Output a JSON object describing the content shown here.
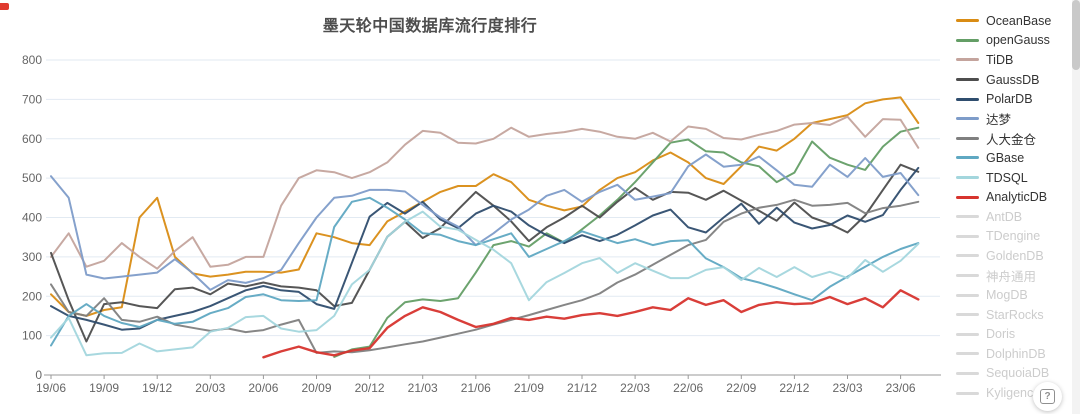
{
  "chart": {
    "title": "墨天轮中国数据库流行度排行",
    "title_color": "#4d4d4d"
  },
  "help_button": {
    "label": "?"
  },
  "legend": {
    "items": [
      {
        "label": "OceanBase",
        "color": "#d98c14",
        "enabled": true
      },
      {
        "label": "openGauss",
        "color": "#649e66",
        "enabled": true
      },
      {
        "label": "TiDB",
        "color": "#c4a49d",
        "enabled": true
      },
      {
        "label": "GaussDB",
        "color": "#4d4d4d",
        "enabled": true
      },
      {
        "label": "PolarDB",
        "color": "#2f4d6e",
        "enabled": true
      },
      {
        "label": "达梦",
        "color": "#7e9cc9",
        "enabled": true
      },
      {
        "label": "人大金仓",
        "color": "#7f7f7f",
        "enabled": true
      },
      {
        "label": "GBase",
        "color": "#5fa8c2",
        "enabled": true
      },
      {
        "label": "TDSQL",
        "color": "#a3d6dd",
        "enabled": true
      },
      {
        "label": "AnalyticDB",
        "color": "#d7342e",
        "enabled": true
      },
      {
        "label": "AntDB",
        "color": "#d9d9d9",
        "enabled": false
      },
      {
        "label": "TDengine",
        "color": "#d9d9d9",
        "enabled": false
      },
      {
        "label": "GoldenDB",
        "color": "#d9d9d9",
        "enabled": false
      },
      {
        "label": "神舟通用",
        "color": "#d9d9d9",
        "enabled": false
      },
      {
        "label": "MogDB",
        "color": "#d9d9d9",
        "enabled": false
      },
      {
        "label": "StarRocks",
        "color": "#d9d9d9",
        "enabled": false
      },
      {
        "label": "Doris",
        "color": "#d9d9d9",
        "enabled": false
      },
      {
        "label": "DolphinDB",
        "color": "#d9d9d9",
        "enabled": false
      },
      {
        "label": "SequoiaDB",
        "color": "#d9d9d9",
        "enabled": false
      },
      {
        "label": "Kyligence",
        "color": "#d9d9d9",
        "enabled": false
      }
    ]
  },
  "chart_data": {
    "type": "line",
    "title": "墨天轮中国数据库流行度排行",
    "xlabel": "",
    "ylabel": "",
    "ylim": [
      0,
      800
    ],
    "y_ticks": [
      0,
      100,
      200,
      300,
      400,
      500,
      600,
      700,
      800
    ],
    "grid": true,
    "legend_position": "right",
    "x_tick_labels": [
      "19/06",
      "19/09",
      "19/12",
      "20/03",
      "20/06",
      "20/09",
      "20/12",
      "21/03",
      "21/06",
      "21/09",
      "21/12",
      "22/03",
      "22/06",
      "22/09",
      "22/12",
      "23/03",
      "23/06"
    ],
    "x": [
      "19/06",
      "19/07",
      "19/08",
      "19/09",
      "19/10",
      "19/11",
      "19/12",
      "20/01",
      "20/02",
      "20/03",
      "20/04",
      "20/05",
      "20/06",
      "20/07",
      "20/08",
      "20/09",
      "20/10",
      "20/11",
      "20/12",
      "21/01",
      "21/02",
      "21/03",
      "21/04",
      "21/05",
      "21/06",
      "21/07",
      "21/08",
      "21/09",
      "21/10",
      "21/11",
      "21/12",
      "22/01",
      "22/02",
      "22/03",
      "22/04",
      "22/05",
      "22/06",
      "22/07",
      "22/08",
      "22/09",
      "22/10",
      "22/11",
      "22/12",
      "23/01",
      "23/02",
      "23/03",
      "23/04",
      "23/05",
      "23/06",
      "23/07"
    ],
    "series": [
      {
        "name": "OceanBase",
        "color": "#d98c14",
        "values": [
          205,
          160,
          150,
          165,
          172,
          400,
          450,
          300,
          258,
          250,
          255,
          262,
          262,
          260,
          268,
          360,
          350,
          335,
          330,
          390,
          415,
          440,
          465,
          480,
          480,
          510,
          490,
          445,
          430,
          418,
          428,
          470,
          500,
          515,
          545,
          565,
          540,
          500,
          485,
          530,
          580,
          570,
          600,
          640,
          650,
          660,
          690,
          700,
          705,
          640
        ]
      },
      {
        "name": "openGauss",
        "color": "#649e66",
        "values": [
          null,
          null,
          null,
          null,
          null,
          null,
          null,
          null,
          null,
          null,
          null,
          null,
          null,
          null,
          null,
          null,
          46,
          65,
          72,
          145,
          185,
          192,
          188,
          195,
          260,
          330,
          340,
          326,
          360,
          336,
          370,
          405,
          445,
          490,
          540,
          590,
          598,
          568,
          565,
          540,
          530,
          490,
          514,
          593,
          552,
          534,
          521,
          580,
          618,
          628
        ]
      },
      {
        "name": "TiDB",
        "color": "#c4a49d",
        "values": [
          300,
          360,
          275,
          290,
          335,
          300,
          270,
          315,
          350,
          275,
          280,
          300,
          300,
          430,
          500,
          520,
          515,
          500,
          515,
          540,
          585,
          620,
          615,
          590,
          588,
          600,
          628,
          605,
          612,
          617,
          625,
          618,
          605,
          600,
          615,
          593,
          631,
          625,
          602,
          598,
          610,
          620,
          636,
          640,
          635,
          656,
          605,
          650,
          648,
          577
        ]
      },
      {
        "name": "GaussDB",
        "color": "#4d4d4d",
        "values": [
          310,
          190,
          85,
          180,
          185,
          175,
          170,
          218,
          222,
          205,
          232,
          225,
          235,
          225,
          222,
          215,
          175,
          183,
          267,
          351,
          389,
          348,
          373,
          420,
          465,
          430,
          390,
          340,
          375,
          400,
          430,
          400,
          440,
          475,
          445,
          465,
          463,
          445,
          468,
          443,
          417,
          392,
          438,
          400,
          384,
          362,
          405,
          470,
          534,
          516
        ]
      },
      {
        "name": "PolarDB",
        "color": "#2f4d6e",
        "values": [
          175,
          150,
          140,
          128,
          115,
          118,
          140,
          150,
          160,
          175,
          195,
          215,
          226,
          215,
          211,
          180,
          168,
          285,
          402,
          437,
          410,
          440,
          395,
          373,
          410,
          430,
          415,
          380,
          355,
          335,
          355,
          340,
          356,
          380,
          405,
          420,
          375,
          362,
          400,
          435,
          384,
          425,
          387,
          372,
          381,
          405,
          389,
          406,
          470,
          526
        ]
      },
      {
        "name": "达梦",
        "color": "#7e9cc9",
        "values": [
          505,
          450,
          255,
          245,
          250,
          255,
          260,
          294,
          259,
          216,
          241,
          234,
          246,
          267,
          335,
          400,
          450,
          455,
          470,
          470,
          466,
          432,
          400,
          377,
          330,
          360,
          395,
          420,
          455,
          470,
          440,
          465,
          483,
          445,
          453,
          462,
          530,
          560,
          529,
          534,
          555,
          520,
          483,
          478,
          534,
          503,
          551,
          503,
          513,
          457
        ]
      },
      {
        "name": "人大金仓",
        "color": "#7f7f7f",
        "values": [
          230,
          160,
          150,
          195,
          140,
          135,
          148,
          128,
          120,
          112,
          118,
          109,
          114,
          128,
          140,
          56,
          60,
          58,
          63,
          70,
          78,
          85,
          95,
          105,
          115,
          128,
          140,
          152,
          165,
          178,
          190,
          207,
          235,
          255,
          280,
          305,
          330,
          343,
          389,
          410,
          425,
          432,
          445,
          430,
          432,
          437,
          411,
          424,
          430,
          440
        ]
      },
      {
        "name": "GBase",
        "color": "#5fa8c2",
        "values": [
          75,
          150,
          180,
          150,
          132,
          122,
          140,
          130,
          135,
          157,
          170,
          198,
          205,
          190,
          188,
          190,
          376,
          440,
          450,
          425,
          395,
          360,
          356,
          340,
          330,
          345,
          360,
          300,
          320,
          340,
          365,
          350,
          335,
          345,
          330,
          340,
          342,
          296,
          274,
          246,
          235,
          221,
          205,
          190,
          224,
          250,
          275,
          300,
          320,
          335
        ]
      },
      {
        "name": "TDSQL",
        "color": "#a3d6dd",
        "values": [
          95,
          145,
          50,
          55,
          56,
          80,
          60,
          65,
          70,
          110,
          120,
          147,
          150,
          118,
          110,
          114,
          150,
          230,
          267,
          351,
          389,
          415,
          377,
          369,
          343,
          318,
          284,
          190,
          236,
          259,
          284,
          297,
          259,
          284,
          265,
          246,
          246,
          267,
          274,
          241,
          272,
          249,
          274,
          249,
          262,
          246,
          292,
          262,
          290,
          333
        ]
      },
      {
        "name": "AnalyticDB",
        "color": "#d7342e",
        "values": [
          null,
          null,
          null,
          null,
          null,
          null,
          null,
          null,
          null,
          null,
          null,
          null,
          45,
          60,
          72,
          58,
          50,
          62,
          68,
          120,
          150,
          172,
          160,
          140,
          122,
          130,
          145,
          140,
          148,
          143,
          152,
          157,
          150,
          160,
          172,
          165,
          195,
          178,
          190,
          160,
          178,
          185,
          180,
          182,
          198,
          180,
          195,
          172,
          215,
          192
        ]
      }
    ]
  }
}
